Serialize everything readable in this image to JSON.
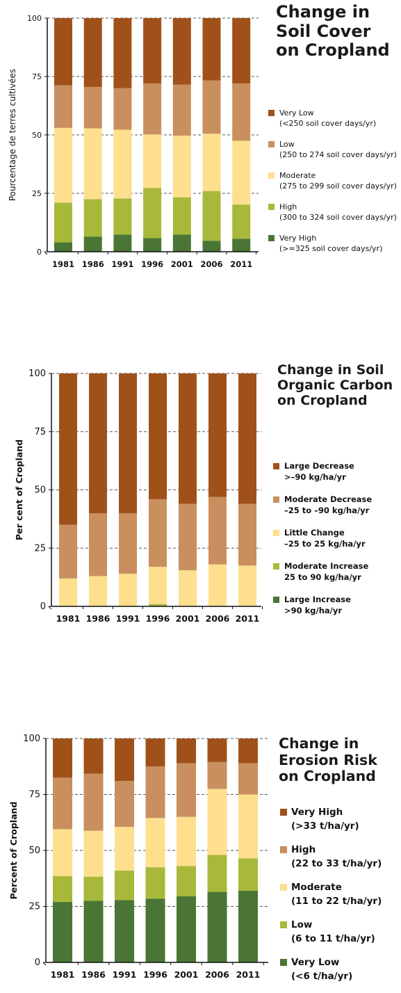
{
  "chart_data": [
    {
      "type": "bar",
      "stacked": true,
      "title": "Change in Soil Cover on Cropland",
      "title_lines": [
        "Change in",
        "Soil Cover",
        "on Cropland"
      ],
      "xlabel": "",
      "ylabel": "Pourcentage de terres cultivées",
      "ylim": [
        0,
        100
      ],
      "yticks": [
        0,
        25,
        50,
        75,
        100
      ],
      "grid": "dashed horizontal at 25, 50, 75, 100",
      "legend_position": "right",
      "categories": [
        "1981",
        "1986",
        "1991",
        "1996",
        "2001",
        "2006",
        "2011"
      ],
      "series": [
        {
          "name": "Very High",
          "detail": "(>=325 soil cover days/yr)",
          "color": "#4a7535",
          "values": [
            4,
            6.5,
            7.3,
            5.8,
            7.3,
            4.7,
            5.5
          ]
        },
        {
          "name": "High",
          "detail": "(300 to 324 soil cover days/yr)",
          "color": "#a8b83a",
          "values": [
            17,
            16,
            15.5,
            21.5,
            16,
            21.3,
            14.7
          ]
        },
        {
          "name": "Moderate",
          "detail": "(275 to 299 soil cover days/yr)",
          "color": "#fddf8e",
          "values": [
            32,
            30.3,
            29.4,
            22.9,
            26.4,
            24.5,
            27.3
          ]
        },
        {
          "name": "Low",
          "detail": "(250 to 274 soil cover days/yr)",
          "color": "#c98f5e",
          "values": [
            18.2,
            17.7,
            17.8,
            21.8,
            21.8,
            22.8,
            24.5
          ]
        },
        {
          "name": "Very Low",
          "detail": "(<250 soil cover days/yr)",
          "color": "#a0511a",
          "values": [
            28.8,
            29.5,
            30,
            28,
            28.5,
            26.7,
            28
          ]
        }
      ]
    },
    {
      "type": "bar",
      "stacked": true,
      "title": "Change in Soil Organic Carbon on Cropland",
      "title_lines": [
        "Change in Soil",
        "Organic Carbon",
        "on Cropland"
      ],
      "xlabel": "",
      "ylabel": "Per cent of Cropland",
      "ylim": [
        0,
        100
      ],
      "yticks": [
        0,
        25,
        50,
        75,
        100
      ],
      "grid": "dashed horizontal at 25, 50, 75, 100",
      "legend_position": "right",
      "categories": [
        "1981",
        "1986",
        "1991",
        "1996",
        "2001",
        "2006",
        "2011"
      ],
      "series": [
        {
          "name": "Large Increase",
          "detail": ">90 kg/ha/yr",
          "color": "#4a7535",
          "values": [
            0,
            0,
            0,
            0,
            0,
            0,
            0
          ]
        },
        {
          "name": "Moderate Increase",
          "detail": "25 to 90 kg/ha/yr",
          "color": "#a8b83a",
          "values": [
            0,
            0,
            0,
            1,
            0,
            0,
            0
          ]
        },
        {
          "name": "Little Change",
          "detail": "–25 to 25 kg/ha/yr",
          "color": "#fddf8e",
          "values": [
            12,
            13,
            14,
            16,
            15.5,
            18,
            17.5
          ]
        },
        {
          "name": "Moderate Decrease",
          "detail": "–25 to –90 kg/ha/yr",
          "color": "#c98f5e",
          "values": [
            23,
            27,
            26,
            29,
            28.5,
            29,
            26.5
          ]
        },
        {
          "name": "Large Decrease",
          "detail": ">–90 kg/ha/yr",
          "color": "#a0511a",
          "values": [
            65,
            60,
            60,
            54,
            56,
            53,
            56
          ]
        }
      ]
    },
    {
      "type": "bar",
      "stacked": true,
      "title": "Change in Erosion Risk on Cropland",
      "title_lines": [
        "Change in",
        "Erosion Risk",
        "on Cropland"
      ],
      "xlabel": "",
      "ylabel": "Percent of Cropland",
      "ylim": [
        0,
        100
      ],
      "yticks": [
        0,
        25,
        50,
        75,
        100
      ],
      "grid": "dashed horizontal at 25, 50, 75, 100",
      "legend_position": "right",
      "categories": [
        "1981",
        "1986",
        "1991",
        "1996",
        "2001",
        "2006",
        "2011"
      ],
      "series": [
        {
          "name": "Very Low",
          "detail": "(<6 t/ha/yr)",
          "color": "#4a7535",
          "values": [
            27,
            27.5,
            27.8,
            28.5,
            29.5,
            31.5,
            32
          ]
        },
        {
          "name": "Low",
          "detail": "(6 to 11 t/ha/yr)",
          "color": "#a8b83a",
          "values": [
            11.5,
            10.8,
            13.2,
            14,
            13.5,
            16.5,
            14.5
          ]
        },
        {
          "name": "Moderate",
          "detail": "(11 to 22 t/ha/yr)",
          "color": "#fddf8e",
          "values": [
            21,
            20.5,
            19.5,
            22,
            22,
            29.5,
            28.5
          ]
        },
        {
          "name": "High",
          "detail": "(22 to 33 t/ha/yr)",
          "color": "#c98f5e",
          "values": [
            23,
            25.5,
            20.5,
            23,
            24,
            12,
            14
          ]
        },
        {
          "name": "Very High",
          "detail": "(>33 t/ha/yr)",
          "color": "#a0511a",
          "values": [
            17.5,
            15.7,
            19,
            12.5,
            11,
            10.5,
            11
          ]
        }
      ]
    }
  ]
}
